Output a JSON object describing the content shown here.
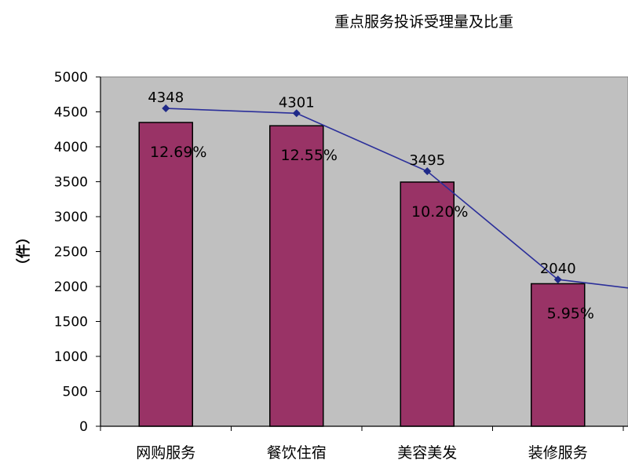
{
  "chart_data": {
    "type": "bar",
    "title": "重点服务投诉受理量及比重",
    "ylabel": "（件）",
    "xlabel": "",
    "ylim": [
      0,
      5000
    ],
    "yticks": [
      0,
      500,
      1000,
      1500,
      2000,
      2500,
      3000,
      3500,
      4000,
      4500,
      5000
    ],
    "grid": false,
    "categories": [
      "网购服务",
      "餐饮住宿",
      "美容美发",
      "装修服务"
    ],
    "values": [
      4348,
      4301,
      3495,
      2040
    ],
    "value_labels": [
      "4348",
      "4301",
      "3495",
      "2040"
    ],
    "percent_labels": [
      "12.69%",
      "12.55%",
      "10.20%",
      "5.95%"
    ],
    "line": {
      "values": [
        4550,
        4480,
        3650,
        2100
      ],
      "trailing_value": 1980
    },
    "colors": {
      "plot_background": "#c0c0c0",
      "bar_fill": "#993366",
      "bar_stroke": "#000000",
      "line": "#2b2f9a",
      "marker": "#1f2a88"
    }
  }
}
